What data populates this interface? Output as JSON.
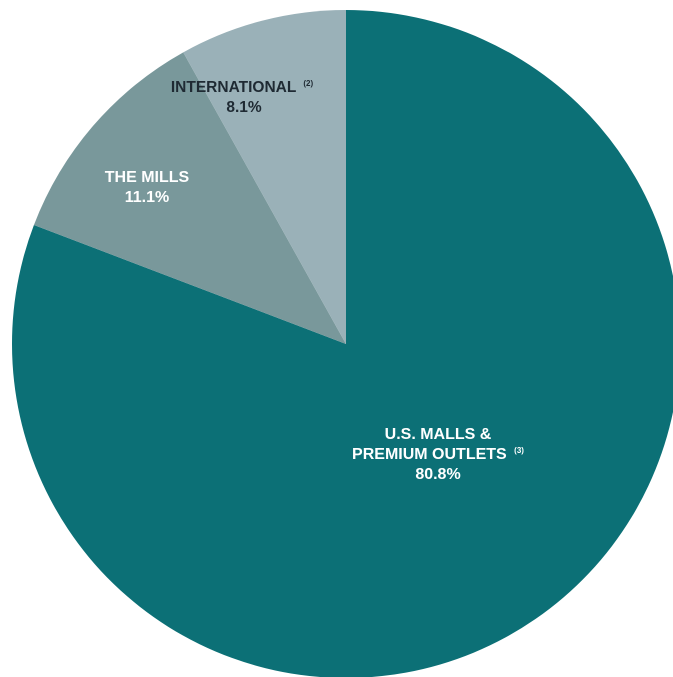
{
  "chart_data": {
    "type": "pie",
    "slices": [
      {
        "label_lines": [
          "U.S. MALLS &",
          "PREMIUM OUTLETS"
        ],
        "footnote": "(3)",
        "value": 80.8,
        "value_label": "80.8%",
        "color": "#0c7076"
      },
      {
        "label_lines": [
          "THE MILLS"
        ],
        "footnote": "",
        "value": 11.1,
        "value_label": "11.1%",
        "color": "#79989b"
      },
      {
        "label_lines": [
          "INTERNATIONAL"
        ],
        "footnote": "(2)",
        "value": 8.1,
        "value_label": "8.1%",
        "color": "#9ab1b8"
      }
    ],
    "start_angle": "12 o'clock",
    "direction": "clockwise",
    "legend": "none"
  }
}
